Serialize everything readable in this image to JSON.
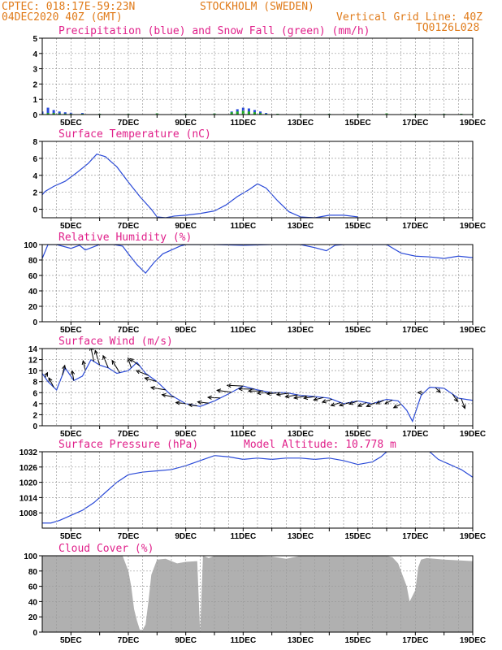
{
  "header": {
    "source_coords": "CPTEC:   018:17E-59:23N",
    "location": "STOCKHOLM (SWEDEN)",
    "run": "04DEC2020 40Z (GMT)",
    "grid_note": "Vertical Grid Line: 40Z",
    "code": "TQ0126L028"
  },
  "colors": {
    "header": "#e07b1a",
    "title": "#e0208a",
    "series": "#2a4ad8",
    "snow": "#22b022",
    "cloud": "#b0b0b0"
  },
  "chart_data": [
    {
      "type": "bar",
      "title": "Precipitation (blue) and Snow Fall (green) (mm/h)",
      "ylim": [
        0,
        5
      ],
      "yticks": [
        "0",
        "1",
        "2",
        "3",
        "4",
        "5"
      ],
      "x_labels": [
        "5DEC",
        "7DEC",
        "9DEC",
        "11DEC",
        "13DEC",
        "15DEC",
        "17DEC",
        "19DEC"
      ],
      "series": [
        {
          "name": "blue",
          "x": [
            4.0,
            4.2,
            4.4,
            4.6,
            4.8,
            5.0,
            5.4,
            6.0,
            7.0,
            8.0,
            9.0,
            10.0,
            10.6,
            10.8,
            11.0,
            11.2,
            11.4,
            11.6,
            11.8,
            12.2,
            13.0,
            14.0,
            15.0,
            16.0,
            17.0,
            18.0,
            18.6,
            19.0
          ],
          "values": [
            0.2,
            0.45,
            0.3,
            0.2,
            0.15,
            0.12,
            0.1,
            0.05,
            0.05,
            0.08,
            0.05,
            0.07,
            0.2,
            0.35,
            0.45,
            0.4,
            0.3,
            0.2,
            0.1,
            0.05,
            0.05,
            0.05,
            0.05,
            0.08,
            0.05,
            0.05,
            0.05,
            0.05
          ]
        },
        {
          "name": "green",
          "x": [
            4.0,
            4.2,
            4.4,
            4.6,
            4.8,
            5.0,
            5.4,
            6.0,
            7.0,
            8.0,
            9.0,
            10.0,
            10.6,
            10.8,
            11.0,
            11.2,
            11.4,
            11.6,
            11.8,
            12.2,
            13.0,
            14.0,
            15.0,
            16.0,
            17.0,
            18.0,
            18.6,
            19.0
          ],
          "values": [
            0.05,
            0.1,
            0.1,
            0.08,
            0.06,
            0.05,
            0.05,
            0.05,
            0.05,
            0.08,
            0.05,
            0.07,
            0.15,
            0.2,
            0.25,
            0.2,
            0.15,
            0.1,
            0.05,
            0.05,
            0.05,
            0.05,
            0.05,
            0.08,
            0.05,
            0.05,
            0.05,
            0.05
          ]
        }
      ]
    },
    {
      "type": "line",
      "title": "Surface Temperature (nC)",
      "ylim": [
        -1,
        8
      ],
      "yticks": [
        "0",
        "2",
        "4",
        "6",
        "8"
      ],
      "x_labels": [
        "5DEC",
        "7DEC",
        "9DEC",
        "11DEC",
        "13DEC",
        "15DEC",
        "17DEC",
        "19DEC"
      ],
      "x": [
        4.0,
        4.1,
        4.4,
        4.8,
        5.2,
        5.6,
        5.9,
        6.2,
        6.6,
        7.0,
        7.4,
        7.8,
        8.0,
        8.3,
        8.6,
        9.0,
        9.5,
        10.0,
        10.4,
        10.8,
        11.2,
        11.5,
        11.8,
        12.2,
        12.6,
        13.0,
        13.5,
        14.0,
        14.5,
        15.0
      ],
      "values": [
        1.7,
        2.1,
        2.7,
        3.3,
        4.3,
        5.4,
        6.5,
        6.2,
        5.0,
        3.2,
        1.5,
        0.0,
        -0.9,
        -1.0,
        -0.8,
        -0.7,
        -0.5,
        -0.2,
        0.5,
        1.5,
        2.3,
        3.0,
        2.5,
        1.0,
        -0.3,
        -0.9,
        -1.0,
        -0.7,
        -0.7,
        -0.9
      ]
    },
    {
      "type": "line",
      "title": "Relative Humidity (%)",
      "ylim": [
        0,
        100
      ],
      "yticks": [
        "0",
        "20",
        "40",
        "60",
        "80",
        "100"
      ],
      "x_labels": [
        "5DEC",
        "7DEC",
        "9DEC",
        "11DEC",
        "13DEC",
        "15DEC",
        "17DEC",
        "19DEC"
      ],
      "x": [
        4.0,
        4.2,
        4.5,
        5.0,
        5.3,
        5.5,
        6.0,
        6.5,
        6.8,
        7.0,
        7.3,
        7.6,
        7.9,
        8.2,
        8.5,
        8.8,
        9.0,
        10.0,
        11.0,
        12.0,
        12.5,
        13.0,
        13.5,
        13.9,
        14.2,
        14.5,
        15.0,
        15.5,
        16.0,
        16.5,
        17.0,
        17.5,
        18.0,
        18.5,
        19.0
      ],
      "values": [
        82,
        100,
        100,
        95,
        99,
        93,
        100,
        100,
        98,
        88,
        74,
        63,
        77,
        88,
        93,
        98,
        100,
        100,
        99,
        100,
        100,
        100,
        96,
        92,
        99,
        100,
        100,
        100,
        100,
        89,
        85,
        84,
        82,
        85,
        83
      ]
    },
    {
      "type": "line",
      "title": "Surface Wind (m/s)",
      "ylim": [
        0,
        14
      ],
      "yticks": [
        "0",
        "2",
        "4",
        "6",
        "8",
        "10",
        "12",
        "14"
      ],
      "x_labels": [
        "5DEC",
        "7DEC",
        "9DEC",
        "11DEC",
        "13DEC",
        "15DEC",
        "17DEC",
        "19DEC"
      ],
      "x": [
        4.0,
        4.2,
        4.5,
        4.8,
        5.1,
        5.4,
        5.7,
        6.0,
        6.3,
        6.6,
        7.0,
        7.3,
        7.6,
        8.0,
        8.5,
        9.0,
        9.5,
        10.0,
        10.5,
        11.0,
        11.5,
        12.0,
        12.5,
        13.0,
        13.5,
        14.0,
        14.5,
        15.0,
        15.5,
        16.0,
        16.4,
        16.7,
        16.9,
        17.2,
        17.5,
        18.0,
        18.5,
        19.0
      ],
      "values": [
        9.5,
        8.0,
        6.5,
        10.5,
        8.2,
        9.0,
        12.0,
        11.0,
        10.5,
        9.5,
        10.0,
        11.5,
        9.5,
        8.0,
        5.5,
        4.0,
        3.5,
        4.5,
        5.8,
        7.2,
        6.5,
        6.0,
        6.0,
        5.5,
        5.3,
        5.0,
        4.0,
        4.5,
        4.0,
        4.8,
        4.5,
        2.8,
        0.8,
        5.5,
        7.0,
        6.8,
        5.0,
        4.6
      ],
      "arrows_vector": [
        [
          4.1,
          -1,
          2
        ],
        [
          4.4,
          2,
          3.8
        ],
        [
          4.7,
          -1,
          4
        ],
        [
          5.1,
          0.7,
          4
        ],
        [
          5.5,
          0.9,
          4
        ],
        [
          5.8,
          1.3,
          6
        ],
        [
          6.0,
          1.8,
          6
        ],
        [
          6.3,
          2.1,
          5
        ],
        [
          6.7,
          3.1,
          5
        ],
        [
          7.1,
          1.3,
          4
        ],
        [
          7.4,
          4,
          3
        ],
        [
          7.7,
          5,
          2
        ],
        [
          8.0,
          5,
          1.5
        ],
        [
          8.3,
          6,
          1
        ],
        [
          8.6,
          5,
          1
        ],
        [
          9.0,
          4,
          0.5
        ],
        [
          9.4,
          3.5,
          0.5
        ],
        [
          9.8,
          4.5,
          0.5
        ],
        [
          10.2,
          5,
          0.3
        ],
        [
          10.6,
          6,
          0.8
        ],
        [
          11.0,
          6.5,
          0.3
        ],
        [
          11.4,
          6.5,
          0.1
        ],
        [
          11.7,
          6,
          0
        ],
        [
          12.0,
          6,
          -0.2
        ],
        [
          12.3,
          5.5,
          -0.5
        ],
        [
          12.6,
          5,
          -0.6
        ],
        [
          12.9,
          5,
          -0.8
        ],
        [
          13.2,
          5,
          -0.9
        ],
        [
          13.5,
          4.5,
          -0.7
        ],
        [
          13.8,
          4,
          -1
        ],
        [
          14.1,
          4,
          -1.2
        ],
        [
          14.4,
          4,
          -1.2
        ],
        [
          14.7,
          4,
          -1.2
        ],
        [
          15.0,
          3.5,
          -1.3
        ],
        [
          15.3,
          3.5,
          -1.5
        ],
        [
          15.6,
          3.5,
          -1.5
        ],
        [
          15.9,
          3,
          -1.5
        ],
        [
          16.2,
          3,
          -1.5
        ],
        [
          16.5,
          3,
          -1.5
        ],
        [
          17.3,
          2.5,
          0
        ],
        [
          17.7,
          -2,
          -2
        ],
        [
          18.3,
          -2,
          -3
        ],
        [
          18.6,
          -1.5,
          -4
        ]
      ]
    },
    {
      "type": "line",
      "title": "Surface Pressure (hPa)",
      "annotation": "Model Altitude: 10.778 m",
      "ylim": [
        1002,
        1032
      ],
      "yticks": [
        "1008",
        "1014",
        "1020",
        "1026",
        "1032"
      ],
      "x_labels": [
        "5DEC",
        "7DEC",
        "9DEC",
        "11DEC",
        "13DEC",
        "15DEC",
        "17DEC",
        "19DEC"
      ],
      "x": [
        4.0,
        4.3,
        4.6,
        5.0,
        5.4,
        5.8,
        6.2,
        6.6,
        7.0,
        7.5,
        8.0,
        8.5,
        9.0,
        9.5,
        10.0,
        10.5,
        11.0,
        11.5,
        12.0,
        12.5,
        13.0,
        13.5,
        14.0,
        14.5,
        15.0,
        15.5,
        15.8,
        16.0,
        16.5,
        17.0,
        17.5,
        17.8,
        18.2,
        18.6,
        19.0
      ],
      "values": [
        1004,
        1004,
        1005,
        1007,
        1009,
        1012,
        1016,
        1020,
        1023,
        1024,
        1024.5,
        1025,
        1026.5,
        1028.5,
        1030.5,
        1030,
        1029,
        1029.5,
        1029,
        1029.5,
        1029.5,
        1029,
        1029.5,
        1028.5,
        1027,
        1028,
        1030,
        1032,
        1034,
        1034,
        1032,
        1029,
        1027,
        1025,
        1022
      ]
    },
    {
      "type": "area",
      "title": "Cloud Cover (%)",
      "ylim": [
        0,
        100
      ],
      "yticks": [
        "0",
        "20",
        "40",
        "60",
        "80",
        "100"
      ],
      "x_labels": [
        "5DEC",
        "7DEC",
        "9DEC",
        "11DEC",
        "13DEC",
        "15DEC",
        "17DEC",
        "19DEC"
      ],
      "x": [
        4.0,
        6.8,
        7.0,
        7.1,
        7.2,
        7.3,
        7.4,
        7.5,
        7.6,
        7.7,
        7.8,
        8.0,
        8.3,
        8.7,
        9.0,
        9.4,
        9.5,
        9.6,
        9.8,
        10.0,
        11.0,
        12.0,
        12.5,
        13.0,
        14.0,
        15.0,
        16.0,
        16.2,
        16.4,
        16.6,
        16.7,
        16.8,
        17.0,
        17.1,
        17.2,
        17.4,
        18.0,
        18.5,
        19.0
      ],
      "values": [
        100,
        100,
        80,
        60,
        30,
        15,
        3,
        3,
        10,
        40,
        75,
        95,
        96,
        90,
        92,
        93,
        0,
        100,
        97,
        100,
        100,
        99,
        96,
        100,
        100,
        100,
        100,
        98,
        90,
        70,
        60,
        40,
        55,
        85,
        95,
        97,
        95,
        94,
        93
      ]
    }
  ]
}
